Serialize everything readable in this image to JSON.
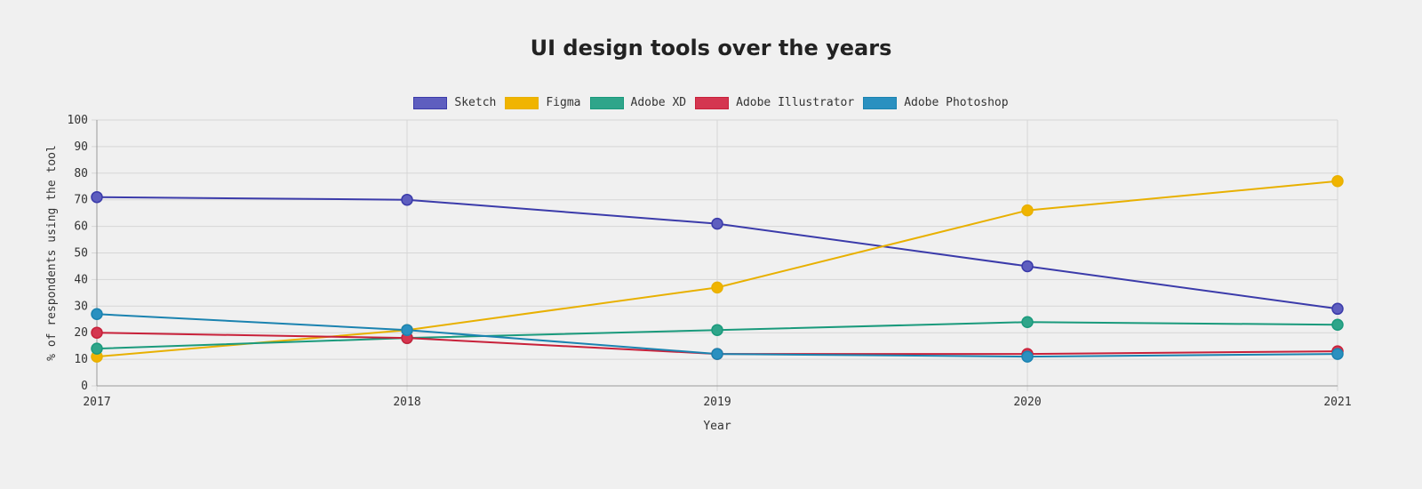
{
  "chart_data": {
    "type": "line",
    "title": "UI design tools over the years",
    "xlabel": "Year",
    "ylabel": "% of respondents using the tool",
    "x": [
      "2017",
      "2018",
      "2019",
      "2020",
      "2021"
    ],
    "ylim": [
      0,
      100
    ],
    "yticks": [
      "0",
      "10",
      "20",
      "30",
      "40",
      "50",
      "60",
      "70",
      "80",
      "90",
      "100"
    ],
    "grid": true,
    "legend_position": "top-center",
    "series": [
      {
        "name": "Sketch",
        "color": "#3b3baa",
        "fill": "#5e5ebf",
        "values": [
          71,
          70,
          61,
          45,
          29
        ]
      },
      {
        "name": "Figma",
        "color": "#e8b000",
        "fill": "#f0b400",
        "values": [
          11,
          21,
          37,
          66,
          77
        ]
      },
      {
        "name": "Adobe XD",
        "color": "#1a9a7c",
        "fill": "#2fa58a",
        "values": [
          14,
          18,
          21,
          24,
          23
        ]
      },
      {
        "name": "Adobe Illustrator",
        "color": "#c8213a",
        "fill": "#d43650",
        "values": [
          20,
          18,
          12,
          12,
          13
        ]
      },
      {
        "name": "Adobe Photoshop",
        "color": "#1b83b0",
        "fill": "#2a90c0",
        "values": [
          27,
          21,
          12,
          11,
          12
        ]
      }
    ]
  }
}
